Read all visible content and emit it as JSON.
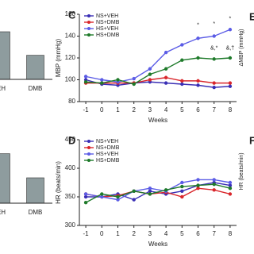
{
  "chart_data": [
    {
      "type": "bar",
      "categories": [
        "EH",
        "DMB"
      ],
      "values": [
        75,
        38
      ],
      "color": "#8e9c9e",
      "ylim": [
        0,
        100
      ]
    },
    {
      "type": "bar",
      "categories": [
        "EH",
        "DMB"
      ],
      "values": [
        78,
        40
      ],
      "color": "#8e9c9e",
      "ylim": [
        0,
        100
      ]
    },
    {
      "type": "line",
      "panel": "C",
      "ylabel": "MBP (mmHg)",
      "xlabel": "Weeks",
      "x": [
        -1,
        0,
        1,
        2,
        3,
        4,
        5,
        6,
        7,
        8
      ],
      "xlim": [
        -1.4,
        8.4
      ],
      "xticks": [
        -1,
        0,
        1,
        2,
        3,
        4,
        5,
        6,
        7,
        8
      ],
      "ylim": [
        80,
        160
      ],
      "yticks": [
        80,
        100,
        120,
        140,
        160
      ],
      "legend": "top-left",
      "series": [
        {
          "name": "NS+VEH",
          "color": "#3a2fb5",
          "values": [
            100,
            96,
            95,
            97,
            98,
            97,
            96,
            95,
            93,
            94
          ]
        },
        {
          "name": "NS+DMB",
          "color": "#d9262b",
          "values": [
            97,
            97,
            97,
            97,
            100,
            102,
            99,
            99,
            97,
            97
          ]
        },
        {
          "name": "HS+VEH",
          "color": "#5b5ce6",
          "values": [
            103,
            100,
            98,
            101,
            110,
            125,
            132,
            138,
            140,
            146
          ]
        },
        {
          "name": "HS+DMB",
          "color": "#1e7a2a",
          "values": [
            98,
            97,
            100,
            96,
            105,
            110,
            118,
            120,
            119,
            120
          ]
        }
      ],
      "annotations": [
        {
          "text": "*",
          "x": 6,
          "y": 150
        },
        {
          "text": "*",
          "x": 7,
          "y": 151
        },
        {
          "text": "*",
          "x": 8,
          "y": 156
        },
        {
          "text": "&,*",
          "x": 7,
          "y": 129
        },
        {
          "text": "&,†",
          "x": 8,
          "y": 129
        }
      ]
    },
    {
      "type": "line",
      "panel": "D",
      "ylabel": "HR (beats/min)",
      "xlabel": "Weeks",
      "x": [
        -1,
        0,
        1,
        2,
        3,
        4,
        5,
        6,
        7,
        8
      ],
      "xlim": [
        -1.4,
        8.4
      ],
      "xticks": [
        -1,
        0,
        1,
        2,
        3,
        4,
        5,
        6,
        7,
        8
      ],
      "ylim": [
        300,
        450
      ],
      "yticks": [
        300,
        350,
        400,
        450
      ],
      "legend": "top-left",
      "series": [
        {
          "name": "NS+VEH",
          "color": "#3a2fb5",
          "values": [
            350,
            350,
            355,
            345,
            360,
            355,
            360,
            370,
            375,
            370
          ]
        },
        {
          "name": "NS+DMB",
          "color": "#d9262b",
          "values": [
            355,
            350,
            352,
            360,
            355,
            358,
            350,
            365,
            362,
            355
          ]
        },
        {
          "name": "HS+VEH",
          "color": "#5b5ce6",
          "values": [
            355,
            350,
            345,
            360,
            365,
            360,
            375,
            380,
            380,
            375
          ]
        },
        {
          "name": "HS+DMB",
          "color": "#1e7a2a",
          "values": [
            340,
            355,
            350,
            360,
            355,
            362,
            368,
            370,
            372,
            365
          ]
        }
      ]
    }
  ],
  "side_panels": [
    {
      "panel": "E",
      "ylabel": "ΔMBP (mmHg)"
    },
    {
      "panel": "F",
      "ylabel": "HR (beats/min)"
    }
  ]
}
